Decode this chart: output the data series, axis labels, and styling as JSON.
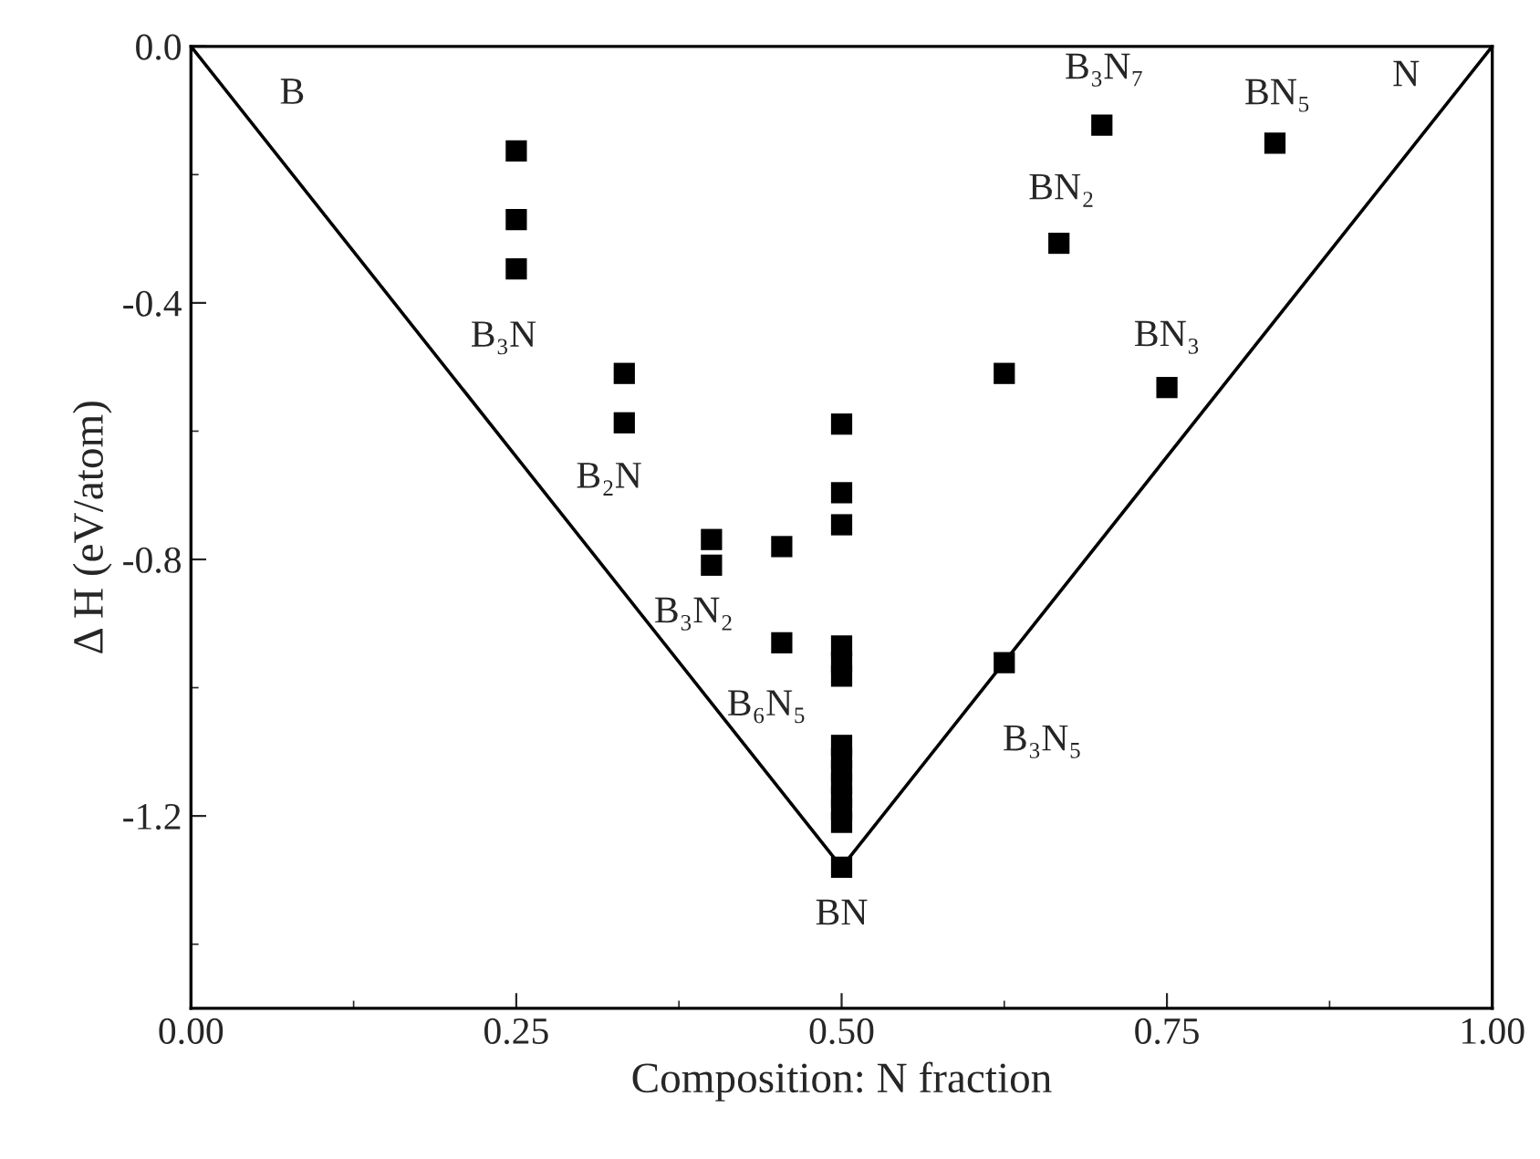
{
  "chart_data": {
    "type": "scatter",
    "xlabel": "Composition: N fraction",
    "ylabel": "Δ H (eV/atom)",
    "xlim": [
      0,
      1
    ],
    "ylim": [
      -1.5,
      0
    ],
    "xticks": [
      {
        "value": 0,
        "label": "0.00"
      },
      {
        "value": 0.25,
        "label": "0.25"
      },
      {
        "value": 0.5,
        "label": "0.50"
      },
      {
        "value": 0.75,
        "label": "0.75"
      },
      {
        "value": 1,
        "label": "1.00"
      }
    ],
    "yticks": [
      {
        "value": -1.2,
        "label": "-1.2"
      },
      {
        "value": -0.8,
        "label": "-0.8"
      },
      {
        "value": -0.4,
        "label": "-0.4"
      },
      {
        "value": 0,
        "label": "0.0"
      }
    ],
    "grid": false,
    "legend": false,
    "series": [
      {
        "type": "line",
        "color": "#000000",
        "marker": "none",
        "line_style": "solid",
        "x": [
          0,
          0.5,
          1
        ],
        "values": [
          0,
          -1.28,
          0
        ]
      },
      {
        "color": "#000000",
        "marker": "square",
        "x": [
          0.25,
          0.25,
          0.25,
          0.333,
          0.333,
          0.4,
          0.4,
          0.454,
          0.454,
          0.5,
          0.5,
          0.5,
          0.5,
          0.5,
          0.5,
          0.5,
          0.5,
          0.5,
          0.5,
          0.5,
          0.5,
          0.5,
          0.5,
          0.7,
          0.833,
          0.667,
          0.625,
          0.75,
          0.625
        ],
        "values": [
          -0.163,
          -0.27,
          -0.347,
          -0.51,
          -0.587,
          -0.769,
          -0.809,
          -0.78,
          -0.93,
          -0.589,
          -0.696,
          -0.746,
          -0.935,
          -0.96,
          -0.982,
          -1.09,
          -1.11,
          -1.13,
          -1.15,
          -1.17,
          -1.19,
          -1.21,
          -1.28,
          -0.123,
          -0.151,
          -0.307,
          -0.51,
          -0.532,
          -0.961
        ]
      }
    ],
    "annotations": [
      {
        "text": "B",
        "x": 0,
        "y": 0
      },
      {
        "text": "N",
        "x": 1,
        "y": 0
      },
      {
        "text": "B₃N",
        "x": 0.25,
        "y": -0.347
      },
      {
        "text": "B₂N",
        "x": 0.333,
        "y": -0.587
      },
      {
        "text": "B₃N₂",
        "x": 0.4,
        "y": -0.809
      },
      {
        "text": "B₆N₅",
        "x": 0.454,
        "y": -0.93
      },
      {
        "text": "BN",
        "x": 0.5,
        "y": -1.28
      },
      {
        "text": "B₃N₅",
        "x": 0.625,
        "y": -0.961
      },
      {
        "text": "B₃N₇",
        "x": 0.7,
        "y": -0.123
      },
      {
        "text": "BN₅",
        "x": 0.833,
        "y": -0.151
      },
      {
        "text": "BN₂",
        "x": 0.667,
        "y": -0.307
      },
      {
        "text": "BN₃",
        "x": 0.75,
        "y": -0.532
      }
    ]
  }
}
